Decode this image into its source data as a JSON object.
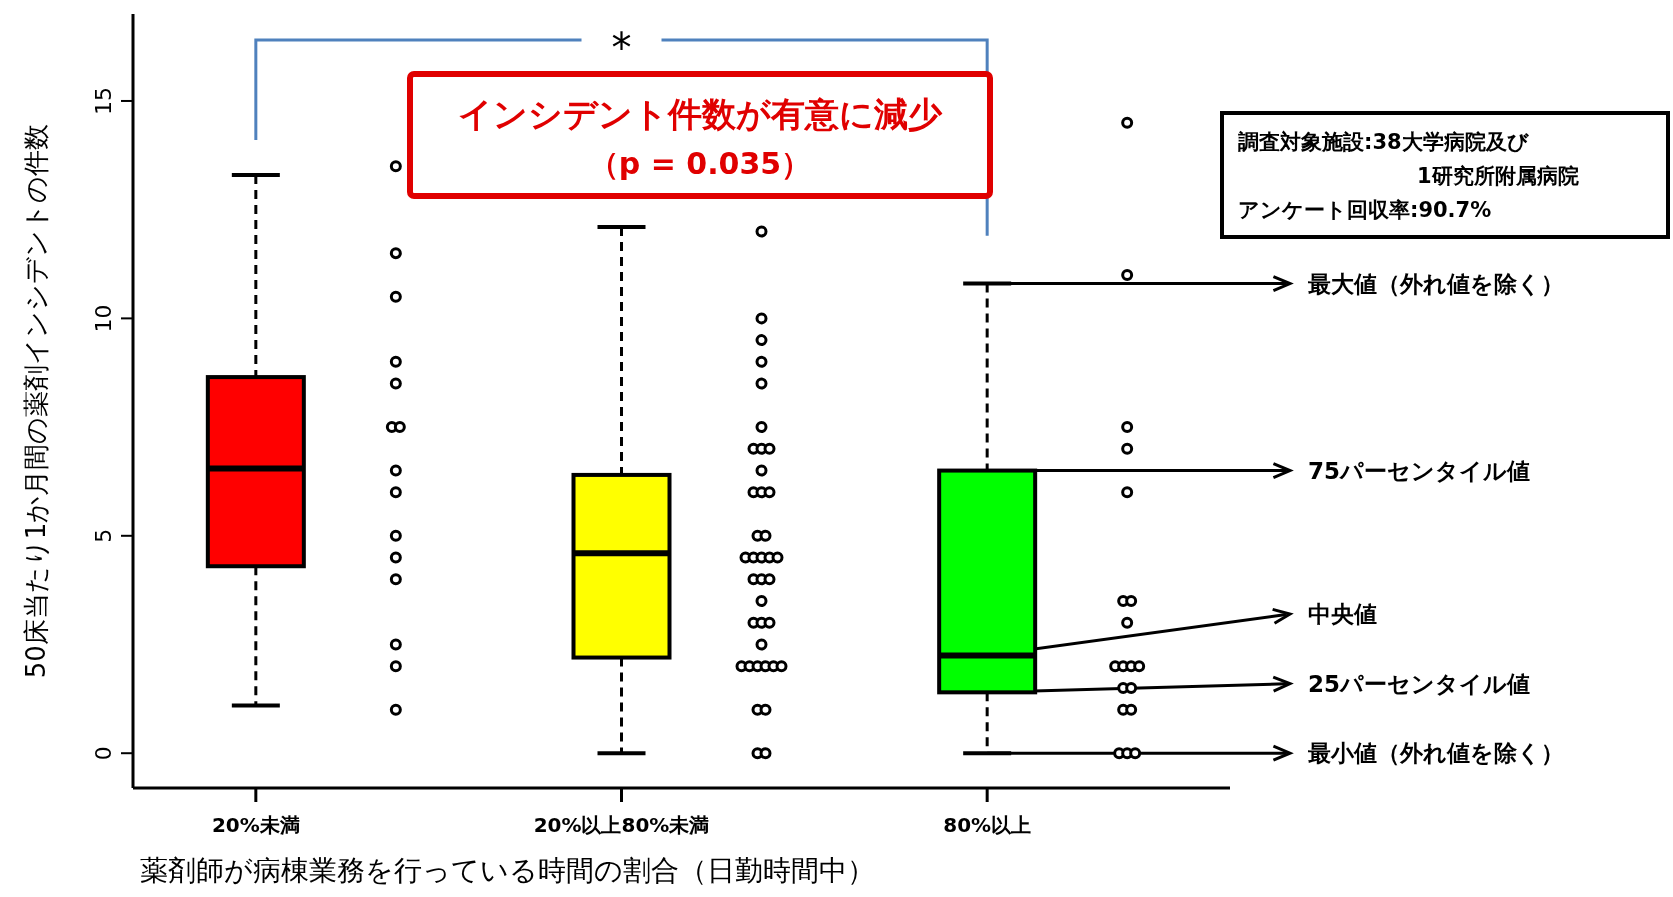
{
  "chart_data": {
    "type": "box",
    "ylabel": "50床当たり1か月間の薬剤インシデントの件数",
    "xlabel": "薬剤師が病棟業務を行っている時間の割合（日勤時間中）",
    "categories": [
      "20%未満",
      "20%以上80%未満",
      "80%以上"
    ],
    "boxes": [
      {
        "low": 1.1,
        "q1": 4.3,
        "median": 6.55,
        "q3": 8.65,
        "high": 13.3
      },
      {
        "low": 0,
        "q1": 2.2,
        "median": 4.6,
        "q3": 6.4,
        "high": 12.1
      },
      {
        "low": 0,
        "q1": 1.4,
        "median": 2.25,
        "q3": 6.5,
        "high": 10.8
      }
    ],
    "colors": [
      "#ff0000",
      "#ffff00",
      "#00ff00"
    ],
    "ylim": [
      -0.8,
      17
    ],
    "yticks": [
      0,
      5,
      10,
      15
    ],
    "grid": false,
    "series": [
      {
        "type": "scatter",
        "color": "#000000",
        "marker": "circle",
        "x": [
          "20%未満",
          "20%未満",
          "20%未満",
          "20%未満",
          "20%未満",
          "20%未満",
          "20%未満",
          "20%未満",
          "20%未満",
          "20%未満",
          "20%未満",
          "20%未満",
          "20%未満",
          "20%未満",
          "20%未満",
          "20%以上80%未満",
          "20%以上80%未満",
          "20%以上80%未満",
          "20%以上80%未満",
          "20%以上80%未満",
          "20%以上80%未満",
          "20%以上80%未満",
          "20%以上80%未満",
          "20%以上80%未満",
          "20%以上80%未満",
          "20%以上80%未満",
          "20%以上80%未満",
          "20%以上80%未満",
          "20%以上80%未満",
          "20%以上80%未満",
          "20%以上80%未満",
          "20%以上80%未満",
          "20%以上80%未満",
          "20%以上80%未満",
          "20%以上80%未満",
          "20%以上80%未満",
          "20%以上80%未満",
          "20%以上80%未満",
          "20%以上80%未満",
          "20%以上80%未満",
          "20%以上80%未満",
          "20%以上80%未満",
          "20%以上80%未満",
          "20%以上80%未満",
          "20%以上80%未満",
          "20%以上80%未満",
          "20%以上80%未満",
          "20%以上80%未満",
          "20%以上80%未満",
          "20%以上80%未満",
          "20%以上80%未満",
          "20%以上80%未満",
          "20%以上80%未満",
          "80%以上",
          "80%以上",
          "80%以上",
          "80%以上",
          "80%以上",
          "80%以上",
          "80%以上",
          "80%以上",
          "80%以上",
          "80%以上",
          "80%以上",
          "80%以上",
          "80%以上",
          "80%以上",
          "80%以上",
          "80%以上",
          "80%以上",
          "80%以上",
          "80%以上"
        ],
        "values": [
          13.5,
          11.5,
          10.5,
          9,
          8.5,
          7.5,
          7.5,
          6.5,
          6,
          5,
          4.5,
          4,
          2.5,
          2,
          1,
          12,
          10,
          9.5,
          9,
          8.5,
          7.5,
          7,
          7,
          7,
          6.5,
          6,
          6,
          6,
          5,
          5,
          4.5,
          4.5,
          4.5,
          4.5,
          4.5,
          4,
          4,
          4,
          3.5,
          3,
          3,
          3,
          2.5,
          2,
          2,
          2,
          2,
          2,
          2,
          1,
          1,
          0,
          0,
          14.5,
          11,
          7.5,
          7,
          6,
          3.5,
          3.5,
          3,
          2,
          2,
          2,
          2,
          1.5,
          1.5,
          1,
          1,
          0,
          0,
          0
        ]
      }
    ],
    "annotations": [
      "*",
      "インシデント件数が有意に減少",
      "（p = 0.035）",
      "調査対象施設:38大学病院及び",
      "1研究所附属病院",
      "アンケート回収率:90.7%",
      {
        "text": "最大値（外れ値を除く）",
        "x": "80%以上",
        "y": 10.8
      },
      {
        "text": "75パーセンタイル値",
        "x": "80%以上",
        "y": 6.5
      },
      {
        "text": "中央値",
        "x": "80%以上",
        "y": 2.25
      },
      {
        "text": "25パーセンタイル値",
        "x": "80%以上",
        "y": 1.4
      },
      {
        "text": "最小値（外れ値を除く）",
        "x": "80%以上",
        "y": 0
      }
    ]
  }
}
